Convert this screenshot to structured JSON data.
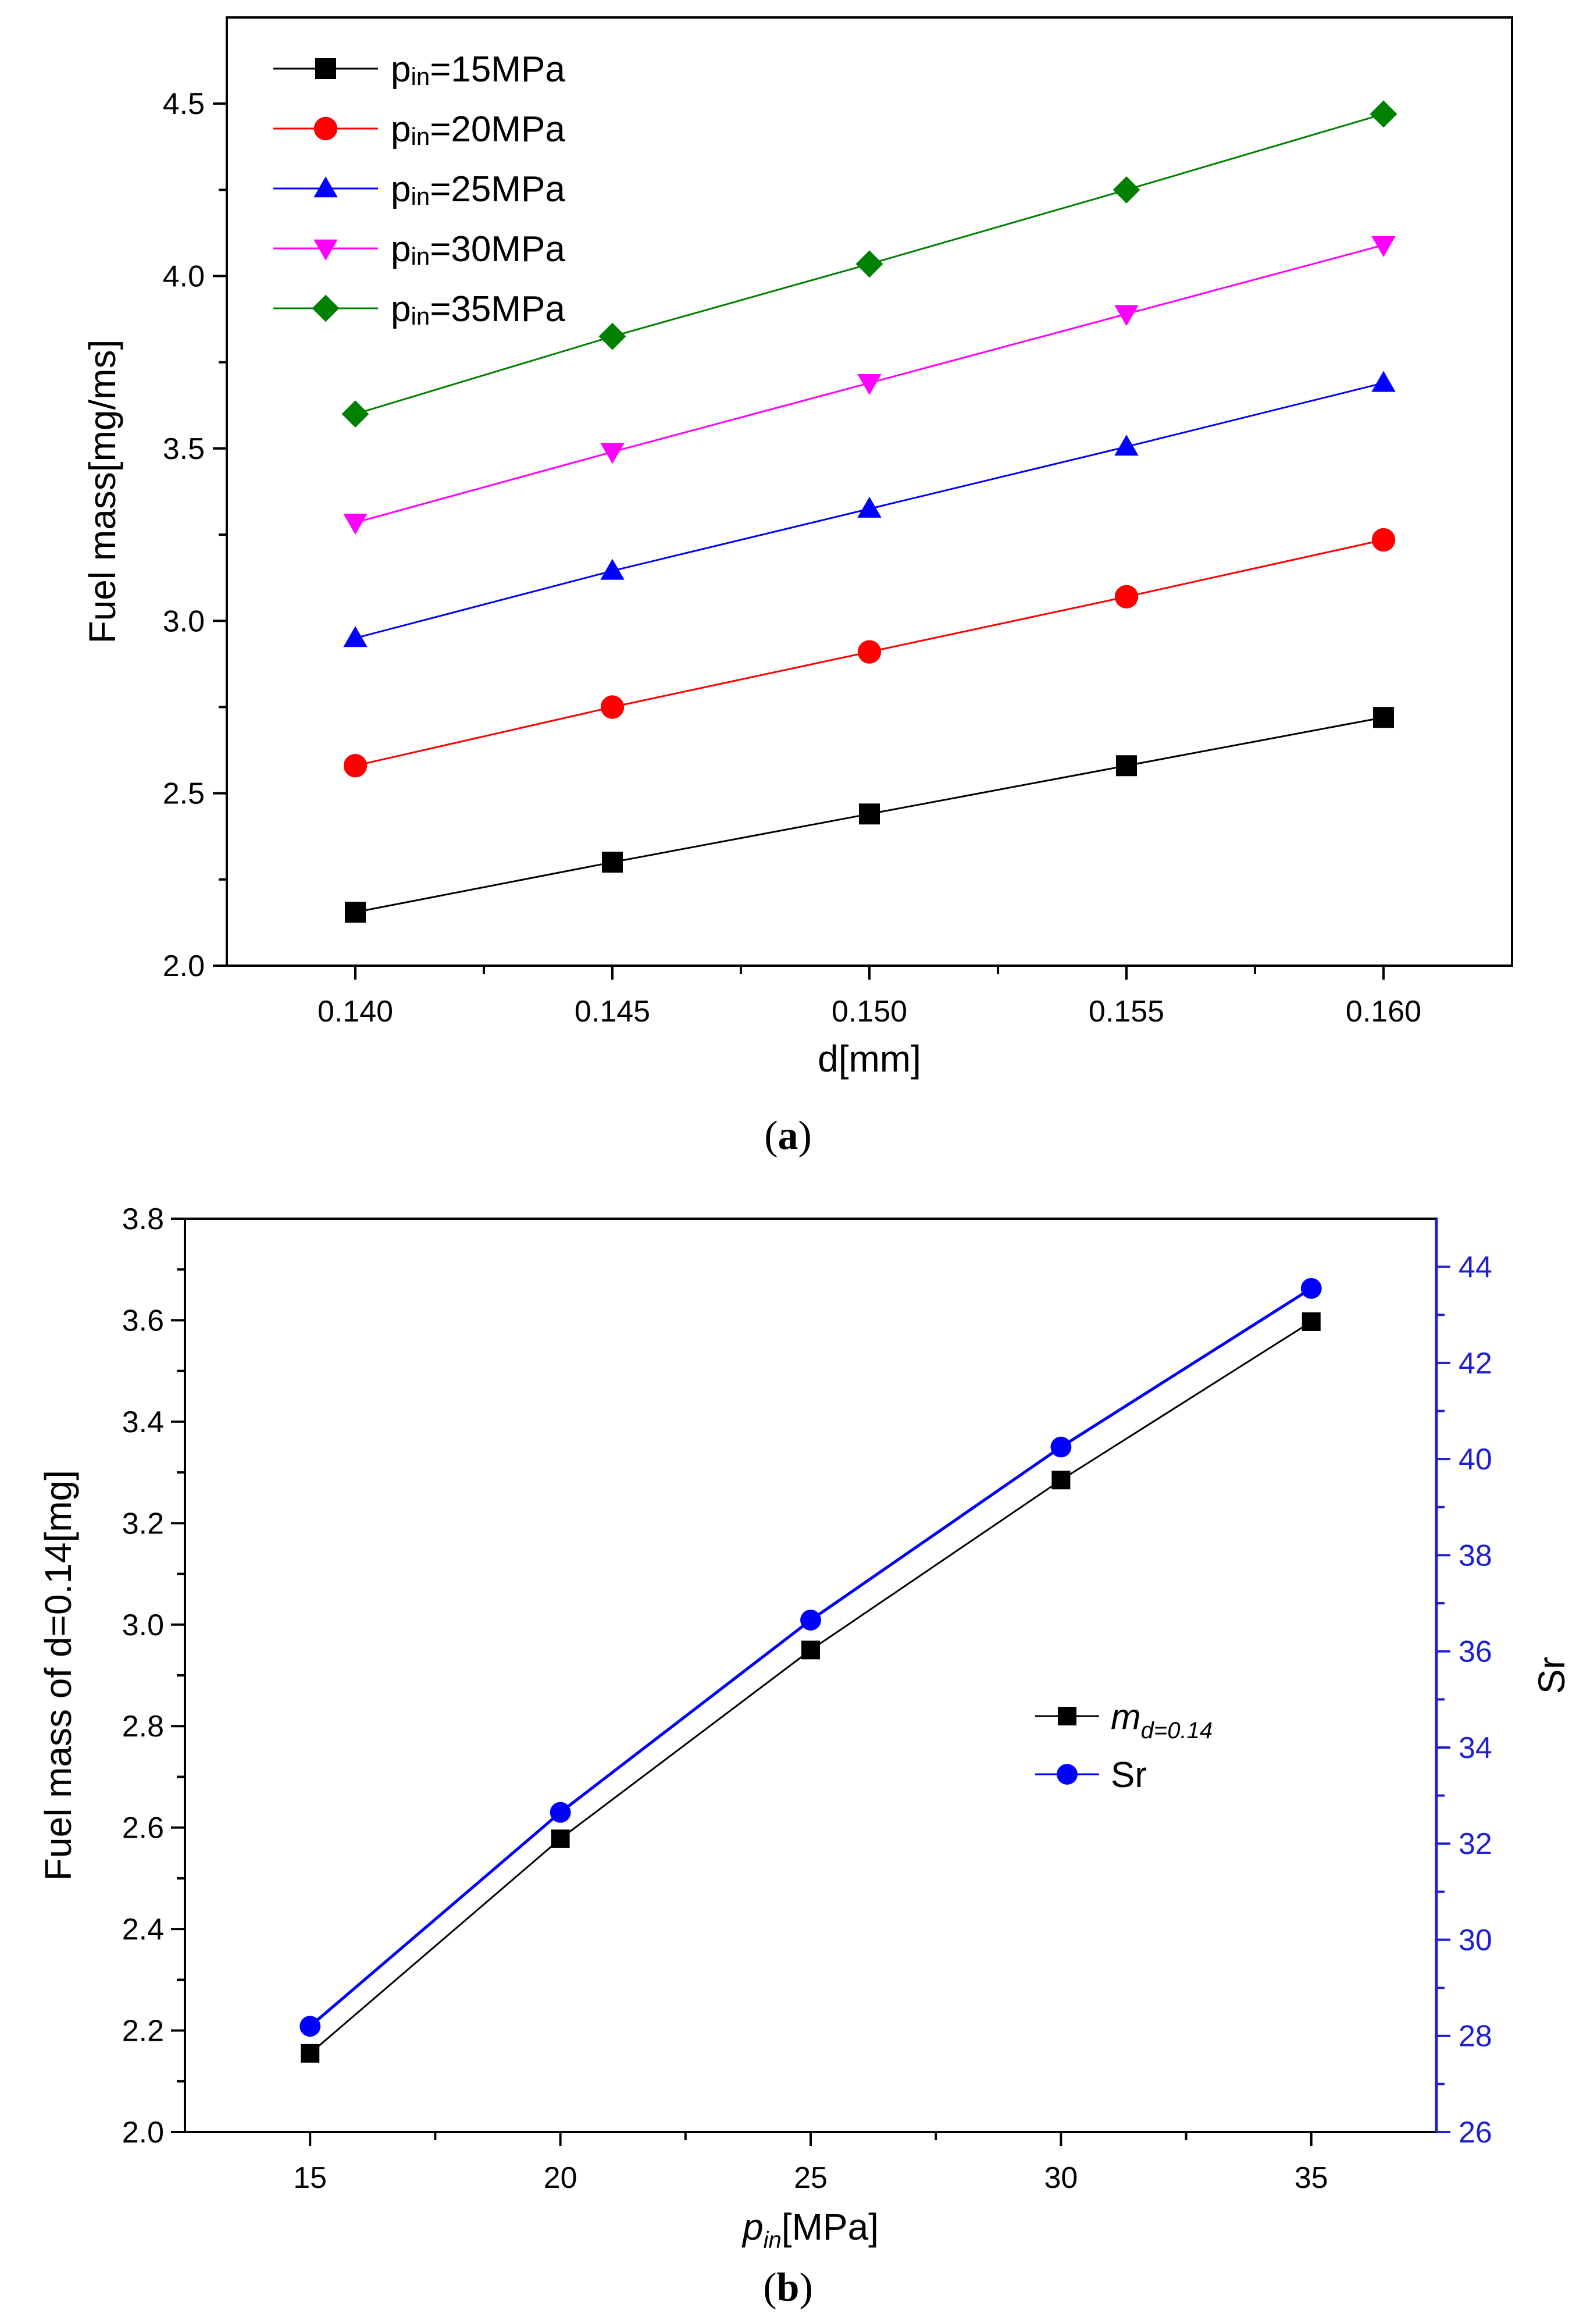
{
  "colors": {
    "black": "#000000",
    "red": "#ff0000",
    "blue": "#0000ff",
    "magenta": "#ff00ff",
    "green": "#008000",
    "right_axis": "#1f1fd0"
  },
  "chart_data": [
    {
      "type": "line",
      "caption": "(a)",
      "caption_parts": {
        "open": "(",
        "letter": "a",
        "close": ")"
      },
      "xlabel": "d[mm]",
      "ylabel": "Fuel mass[mg/ms]",
      "xlim": [
        0.1375,
        0.1625
      ],
      "ylim": [
        2.0,
        4.75
      ],
      "xticks": [
        0.14,
        0.145,
        0.15,
        0.155,
        0.16
      ],
      "xtick_labels": [
        "0.140",
        "0.145",
        "0.150",
        "0.155",
        "0.160"
      ],
      "yticks": [
        2.0,
        2.5,
        3.0,
        3.5,
        4.0,
        4.5
      ],
      "ytick_labels": [
        "2.0",
        "2.5",
        "3.0",
        "3.5",
        "4.0",
        "4.5"
      ],
      "legend_location": "top-left",
      "x": [
        0.14,
        0.145,
        0.15,
        0.155,
        0.16
      ],
      "series": [
        {
          "name": "pin=15MPa",
          "label_base": "p",
          "label_sub": "in",
          "label_rest": "=15MPa",
          "color": "#000000",
          "marker": "square",
          "values": [
            2.155,
            2.3,
            2.44,
            2.58,
            2.72
          ]
        },
        {
          "name": "pin=20MPa",
          "label_base": "p",
          "label_sub": "in",
          "label_rest": "=20MPa",
          "color": "#ff0000",
          "marker": "circle",
          "values": [
            2.58,
            2.75,
            2.91,
            3.07,
            3.235
          ]
        },
        {
          "name": "pin=25MPa",
          "label_base": "p",
          "label_sub": "in",
          "label_rest": "=25MPa",
          "color": "#0000ff",
          "marker": "triangle-up",
          "values": [
            2.95,
            3.145,
            3.325,
            3.505,
            3.69
          ]
        },
        {
          "name": "pin=30MPa",
          "label_base": "p",
          "label_sub": "in",
          "label_rest": "=30MPa",
          "color": "#ff00ff",
          "marker": "triangle-down",
          "values": [
            3.285,
            3.49,
            3.69,
            3.89,
            4.09
          ]
        },
        {
          "name": "pin=35MPa",
          "label_base": "p",
          "label_sub": "in",
          "label_rest": "=35MPa",
          "color": "#008000",
          "marker": "diamond",
          "values": [
            3.6,
            3.825,
            4.035,
            4.25,
            4.47
          ]
        }
      ]
    },
    {
      "type": "line",
      "caption": "(b)",
      "caption_parts": {
        "open": "(",
        "letter": "b",
        "close": ")"
      },
      "xlabel": "pin[MPa]",
      "xlabel_parts": {
        "base": "p",
        "sub": "in",
        "rest": "[MPa]"
      },
      "ylabel_left": "Fuel mass of d=0.14[mg]",
      "ylabel_right": "Sr",
      "xlim": [
        12.5,
        37.5
      ],
      "xticks": [
        15,
        20,
        25,
        30,
        35
      ],
      "xtick_labels": [
        "15",
        "20",
        "25",
        "30",
        "35"
      ],
      "ylim_left": [
        2.0,
        3.8
      ],
      "yticks_left": [
        2.0,
        2.2,
        2.4,
        2.6,
        2.8,
        3.0,
        3.2,
        3.4,
        3.6,
        3.8
      ],
      "ytick_labels_left": [
        "2.0",
        "2.2",
        "2.4",
        "2.6",
        "2.8",
        "3.0",
        "3.2",
        "3.4",
        "3.6",
        "3.8"
      ],
      "ylim_right": [
        26,
        45
      ],
      "yticks_right": [
        26,
        28,
        30,
        32,
        34,
        36,
        38,
        40,
        42,
        44
      ],
      "ytick_labels_right": [
        "26",
        "28",
        "30",
        "32",
        "34",
        "36",
        "38",
        "40",
        "42",
        "44"
      ],
      "legend_location": "center-right",
      "x": [
        15,
        20,
        25,
        30,
        35
      ],
      "series": [
        {
          "name": "md=0.14",
          "label_base": "m",
          "label_sub": "d=0.14",
          "axis": "left",
          "color": "#000000",
          "marker": "square",
          "values": [
            2.155,
            2.578,
            2.95,
            3.285,
            3.597
          ]
        },
        {
          "name": "Sr",
          "label_base": "Sr",
          "label_sub": "",
          "axis": "right",
          "color": "#0000ff",
          "marker": "circle",
          "values": [
            28.2,
            32.65,
            36.65,
            40.25,
            43.55
          ]
        }
      ]
    }
  ]
}
